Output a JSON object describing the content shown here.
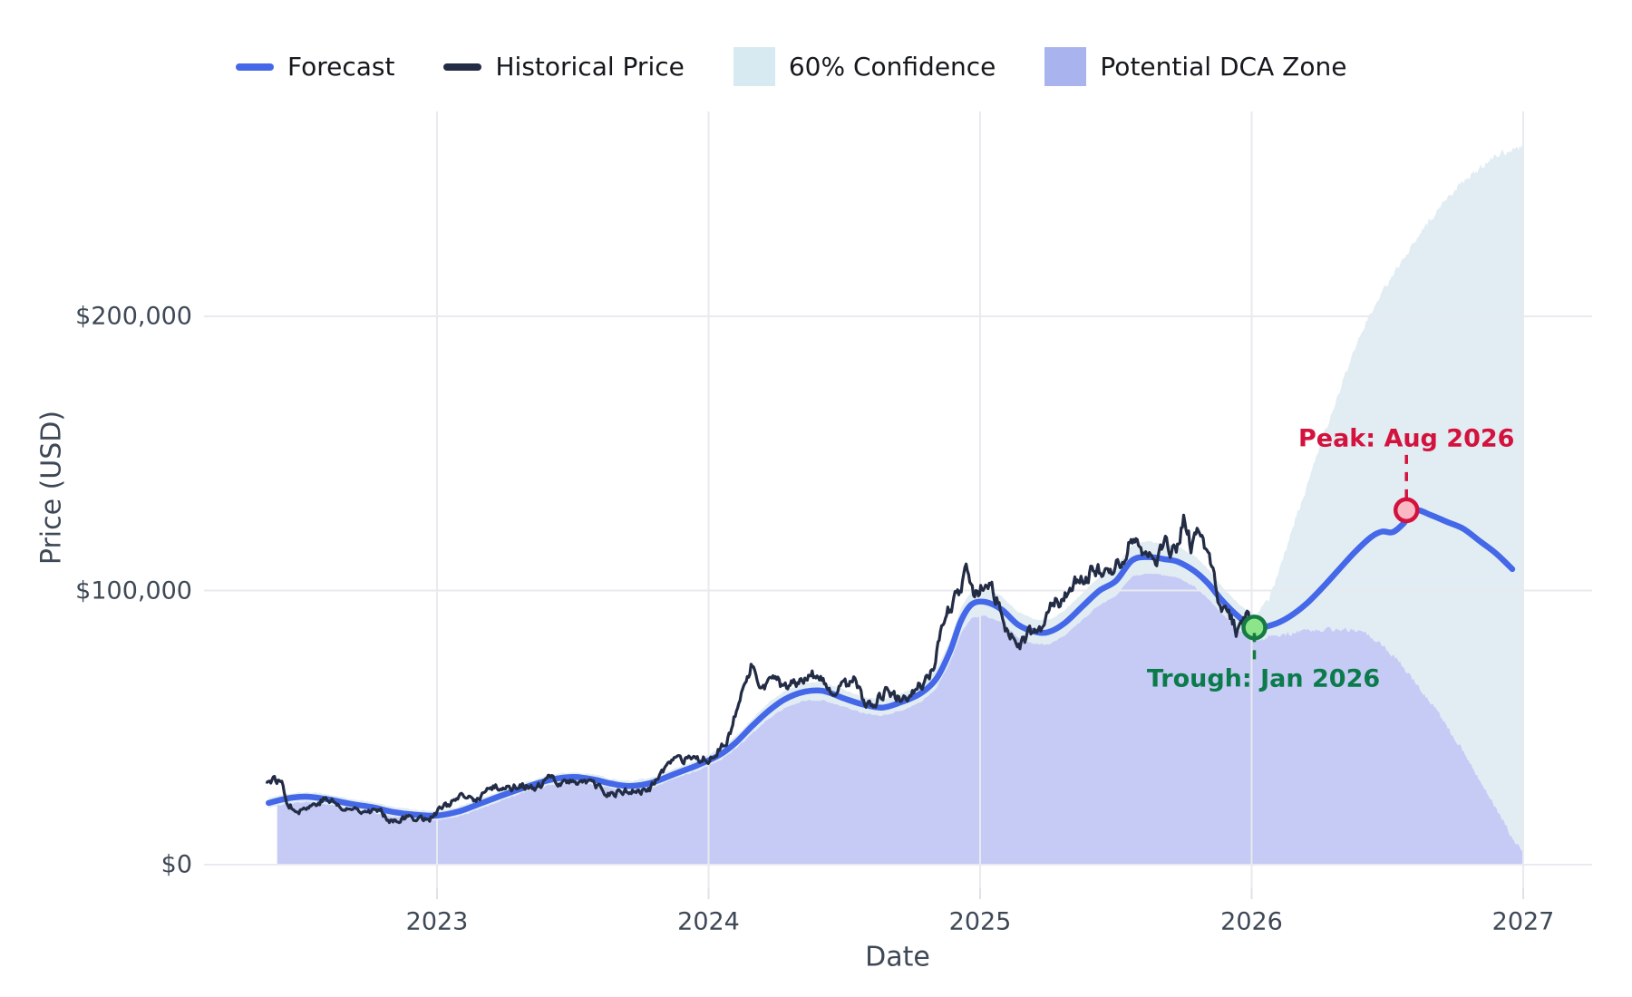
{
  "legend": {
    "items": [
      {
        "label": "Forecast",
        "swatch": "line",
        "color": "#4468e8"
      },
      {
        "label": "Historical Price",
        "swatch": "line",
        "color": "#232c45"
      },
      {
        "label": "60% Confidence",
        "swatch": "patch",
        "color": "#d7e9f1"
      },
      {
        "label": "Potential DCA Zone",
        "swatch": "patch",
        "color": "#a9b4ee"
      }
    ]
  },
  "axes": {
    "x_label": "Date",
    "y_label": "Price (USD)",
    "x_tick_labels": [
      "2023",
      "2024",
      "2025",
      "2026",
      "2027"
    ],
    "y_tick_labels": [
      "$0",
      "$100,000",
      "$200,000"
    ]
  },
  "annotations": {
    "peak": {
      "label": "Peak: Aug 2026",
      "color": "#d3123d"
    },
    "trough": {
      "label": "Trough: Jan 2026",
      "color": "#0b7b4b"
    }
  },
  "chart_data": {
    "type": "line",
    "title": "",
    "xlabel": "Date",
    "ylabel": "Price (USD)",
    "x_unit": "decimal_year",
    "y_unit": "USD_thousands",
    "grid": true,
    "legend_position": "top",
    "x_ticks": {
      "values": [
        2023,
        2024,
        2025,
        2026,
        2027
      ],
      "labels": [
        "2023",
        "2024",
        "2025",
        "2026",
        "2027"
      ]
    },
    "y_ticks": {
      "values": [
        0,
        100,
        200
      ],
      "labels": [
        "$0",
        "$100,000",
        "$200,000"
      ]
    },
    "xlim": [
      2022.25,
      2027.25
    ],
    "ylim_thousands": [
      -9,
      275
    ],
    "forecast_start_x": 2026.01,
    "series": [
      {
        "name": "Historical Price",
        "color": "#232c45",
        "points": [
          [
            2022.37,
            30.2
          ],
          [
            2022.4,
            31.0
          ],
          [
            2022.43,
            29.8
          ],
          [
            2022.455,
            21.2
          ],
          [
            2022.5,
            20.2
          ],
          [
            2022.54,
            21.6
          ],
          [
            2022.58,
            23.8
          ],
          [
            2022.62,
            23.0
          ],
          [
            2022.66,
            19.6
          ],
          [
            2022.7,
            20.6
          ],
          [
            2022.74,
            20.2
          ],
          [
            2022.79,
            19.4
          ],
          [
            2022.83,
            16.4
          ],
          [
            2022.87,
            16.9
          ],
          [
            2022.92,
            17.3
          ],
          [
            2022.97,
            16.6
          ],
          [
            2023.02,
            20.8
          ],
          [
            2023.06,
            23.2
          ],
          [
            2023.1,
            24.6
          ],
          [
            2023.14,
            23.3
          ],
          [
            2023.19,
            27.6
          ],
          [
            2023.23,
            28.4
          ],
          [
            2023.27,
            28.0
          ],
          [
            2023.31,
            29.6
          ],
          [
            2023.36,
            26.8
          ],
          [
            2023.41,
            31.4
          ],
          [
            2023.45,
            30.4
          ],
          [
            2023.5,
            30.0
          ],
          [
            2023.54,
            31.2
          ],
          [
            2023.58,
            28.9
          ],
          [
            2023.62,
            25.7
          ],
          [
            2023.66,
            26.1
          ],
          [
            2023.7,
            27.0
          ],
          [
            2023.75,
            26.4
          ],
          [
            2023.79,
            28.2
          ],
          [
            2023.83,
            34.4
          ],
          [
            2023.87,
            37.3
          ],
          [
            2023.92,
            38.2
          ],
          [
            2023.96,
            37.4
          ],
          [
            2024.0,
            39.0
          ],
          [
            2024.04,
            42.8
          ],
          [
            2024.08,
            47.0
          ],
          [
            2024.12,
            62.0
          ],
          [
            2024.16,
            73.0
          ],
          [
            2024.2,
            65.0
          ],
          [
            2024.24,
            68.5
          ],
          [
            2024.28,
            63.2
          ],
          [
            2024.33,
            67.2
          ],
          [
            2024.37,
            70.6
          ],
          [
            2024.41,
            68.0
          ],
          [
            2024.45,
            61.2
          ],
          [
            2024.5,
            65.0
          ],
          [
            2024.54,
            67.6
          ],
          [
            2024.58,
            56.8
          ],
          [
            2024.62,
            60.2
          ],
          [
            2024.66,
            64.2
          ],
          [
            2024.7,
            60.4
          ],
          [
            2024.74,
            63.0
          ],
          [
            2024.79,
            66.2
          ],
          [
            2024.83,
            72.4
          ],
          [
            2024.87,
            89.5
          ],
          [
            2024.91,
            97.5
          ],
          [
            2024.95,
            106.0
          ],
          [
            2024.98,
            97.5
          ],
          [
            2025.02,
            104.5
          ],
          [
            2025.06,
            97.0
          ],
          [
            2025.1,
            84.0
          ],
          [
            2025.14,
            80.0
          ],
          [
            2025.18,
            83.5
          ],
          [
            2025.22,
            85.0
          ],
          [
            2025.26,
            94.5
          ],
          [
            2025.31,
            97.2
          ],
          [
            2025.35,
            104.8
          ],
          [
            2025.39,
            103.6
          ],
          [
            2025.43,
            108.6
          ],
          [
            2025.47,
            105.8
          ],
          [
            2025.52,
            110.5
          ],
          [
            2025.56,
            119.5
          ],
          [
            2025.6,
            115.8
          ],
          [
            2025.64,
            110.2
          ],
          [
            2025.68,
            117.2
          ],
          [
            2025.72,
            113.6
          ],
          [
            2025.75,
            125.5
          ],
          [
            2025.78,
            116.0
          ],
          [
            2025.81,
            121.0
          ],
          [
            2025.85,
            108.5
          ],
          [
            2025.88,
            95.0
          ],
          [
            2025.92,
            90.0
          ],
          [
            2025.95,
            84.5
          ],
          [
            2025.98,
            90.0
          ],
          [
            2026.01,
            86.5
          ]
        ]
      },
      {
        "name": "Forecast",
        "color": "#4468e8",
        "points": [
          [
            2022.38,
            22.5
          ],
          [
            2022.45,
            24.2
          ],
          [
            2022.52,
            24.8
          ],
          [
            2022.6,
            23.8
          ],
          [
            2022.68,
            22.2
          ],
          [
            2022.76,
            21.0
          ],
          [
            2022.84,
            19.2
          ],
          [
            2022.92,
            18.2
          ],
          [
            2023.0,
            17.9
          ],
          [
            2023.08,
            19.4
          ],
          [
            2023.16,
            22.3
          ],
          [
            2023.24,
            25.3
          ],
          [
            2023.33,
            28.4
          ],
          [
            2023.42,
            31.0
          ],
          [
            2023.5,
            32.0
          ],
          [
            2023.58,
            31.0
          ],
          [
            2023.64,
            29.6
          ],
          [
            2023.71,
            28.7
          ],
          [
            2023.79,
            29.9
          ],
          [
            2023.88,
            33.3
          ],
          [
            2023.96,
            36.3
          ],
          [
            2024.04,
            40.0
          ],
          [
            2024.1,
            44.5
          ],
          [
            2024.16,
            50.5
          ],
          [
            2024.22,
            56.0
          ],
          [
            2024.28,
            60.3
          ],
          [
            2024.35,
            63.0
          ],
          [
            2024.42,
            63.4
          ],
          [
            2024.5,
            60.6
          ],
          [
            2024.57,
            58.4
          ],
          [
            2024.64,
            57.3
          ],
          [
            2024.71,
            59.3
          ],
          [
            2024.78,
            62.4
          ],
          [
            2024.84,
            68.0
          ],
          [
            2024.89,
            78.0
          ],
          [
            2024.93,
            89.0
          ],
          [
            2024.97,
            95.0
          ],
          [
            2025.02,
            95.8
          ],
          [
            2025.08,
            93.0
          ],
          [
            2025.14,
            87.5
          ],
          [
            2025.2,
            85.0
          ],
          [
            2025.25,
            84.8
          ],
          [
            2025.31,
            88.0
          ],
          [
            2025.38,
            94.5
          ],
          [
            2025.44,
            100.0
          ],
          [
            2025.5,
            103.5
          ],
          [
            2025.56,
            111.0
          ],
          [
            2025.62,
            112.2
          ],
          [
            2025.68,
            111.4
          ],
          [
            2025.73,
            110.4
          ],
          [
            2025.79,
            107.0
          ],
          [
            2025.84,
            102.5
          ],
          [
            2025.89,
            96.5
          ],
          [
            2025.95,
            90.6
          ],
          [
            2026.01,
            86.5
          ],
          [
            2026.08,
            87.6
          ],
          [
            2026.14,
            90.5
          ],
          [
            2026.2,
            95.0
          ],
          [
            2026.26,
            101.0
          ],
          [
            2026.32,
            107.5
          ],
          [
            2026.38,
            114.0
          ],
          [
            2026.44,
            119.5
          ],
          [
            2026.48,
            121.5
          ],
          [
            2026.52,
            121.3
          ],
          [
            2026.56,
            124.5
          ],
          [
            2026.6,
            129.3
          ],
          [
            2026.66,
            127.5
          ],
          [
            2026.72,
            125.0
          ],
          [
            2026.78,
            122.5
          ],
          [
            2026.84,
            118.0
          ],
          [
            2026.9,
            113.5
          ],
          [
            2026.96,
            107.8
          ]
        ]
      }
    ],
    "confidence_band": {
      "label": "60% Confidence",
      "fill_color": "#e2edf3",
      "historical_halfwidth_pct": 5.2,
      "historical_halfwidth_min_thousands": 1.8,
      "upper_forecast_points": [
        [
          2026.01,
          90.5
        ],
        [
          2026.06,
          96.0
        ],
        [
          2026.1,
          106.0
        ],
        [
          2026.14,
          120.0
        ],
        [
          2026.2,
          137.0
        ],
        [
          2026.26,
          155.0
        ],
        [
          2026.32,
          172.0
        ],
        [
          2026.38,
          189.0
        ],
        [
          2026.44,
          202.0
        ],
        [
          2026.5,
          212.0
        ],
        [
          2026.56,
          221.0
        ],
        [
          2026.62,
          230.0
        ],
        [
          2026.68,
          238.0
        ],
        [
          2026.74,
          245.0
        ],
        [
          2026.8,
          251.0
        ],
        [
          2026.86,
          256.0
        ],
        [
          2026.92,
          259.5
        ],
        [
          2027.0,
          262.0
        ]
      ],
      "lower_forecast_points": [
        [
          2026.01,
          82.5
        ],
        [
          2026.06,
          83.0
        ],
        [
          2026.12,
          84.0
        ],
        [
          2026.18,
          85.0
        ],
        [
          2026.24,
          85.5
        ],
        [
          2026.3,
          86.0
        ],
        [
          2026.36,
          86.0
        ],
        [
          2026.42,
          84.5
        ],
        [
          2026.47,
          81.0
        ],
        [
          2026.52,
          76.5
        ],
        [
          2026.57,
          71.0
        ],
        [
          2026.62,
          64.5
        ],
        [
          2026.67,
          58.0
        ],
        [
          2026.72,
          50.5
        ],
        [
          2026.77,
          43.0
        ],
        [
          2026.82,
          34.5
        ],
        [
          2026.87,
          26.0
        ],
        [
          2026.91,
          18.5
        ],
        [
          2026.95,
          11.5
        ],
        [
          2027.0,
          4.0
        ]
      ]
    },
    "dca_zone": {
      "label": "Potential DCA Zone",
      "fill_color": "#c5cbf4",
      "start_x": 2022.41,
      "end_x": 2027.0,
      "note": "fills from $0 up to the lower confidence bound"
    },
    "markers": {
      "trough": {
        "x": 2026.01,
        "y": 86.5,
        "label": "Trough: Jan 2026",
        "fill": "#8ce689",
        "stroke": "#157a44"
      },
      "peak": {
        "x": 2026.57,
        "y": 129.3,
        "label": "Peak: Aug 2026",
        "fill": "#f8b9c4",
        "stroke": "#d3123d"
      }
    }
  }
}
